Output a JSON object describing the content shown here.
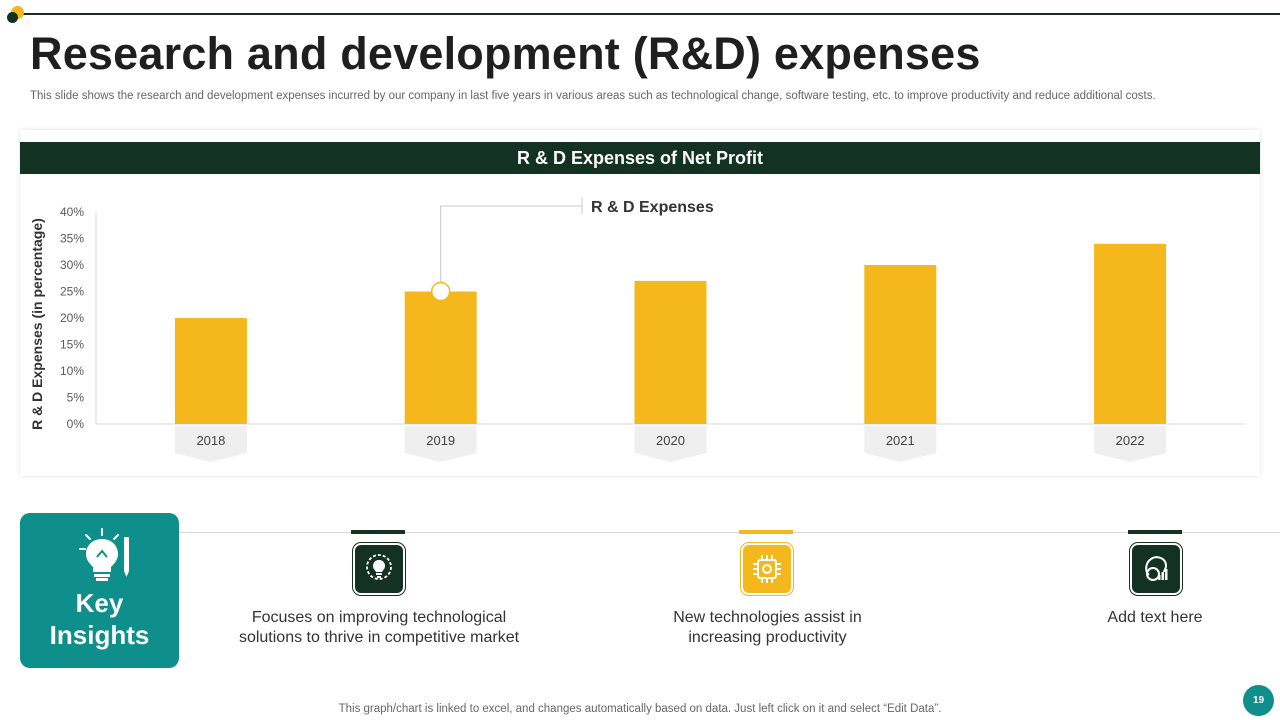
{
  "slide": {
    "title": "Research and development (R&D) expenses",
    "subtitle": "This slide shows the research and development expenses incurred by our company in last five  years  in various areas such as technological change, software testing, etc. to improve productivity and reduce additional costs.",
    "footer": "This graph/chart is linked to excel,  and changes automatically based on data. Just left click on it and select “Edit Data”.",
    "page_number": "19"
  },
  "chart_data": {
    "type": "bar",
    "title": "R & D Expenses of Net Profit",
    "series_name": "R & D Expenses",
    "xlabel": "",
    "ylabel": "R & D Expenses (in percentage)",
    "categories": [
      "2018",
      "2019",
      "2020",
      "2021",
      "2022"
    ],
    "values": [
      20,
      25,
      27,
      30,
      34
    ],
    "ylim": [
      0,
      40
    ],
    "y_ticks": [
      0,
      5,
      10,
      15,
      20,
      25,
      30,
      35,
      40
    ],
    "y_tick_suffix": "%",
    "callout_category_index": 1,
    "bar_color": "#f4b81c",
    "grid": false
  },
  "insights": {
    "heading_line1": "Key",
    "heading_line2": "Insights",
    "items": [
      {
        "text_line1": "Focuses on improving technological",
        "text_line2": "solutions to thrive  in competitive market",
        "icon": "lightbulb-gear-icon",
        "accent": "#133223"
      },
      {
        "text_line1": "New technologies assist in",
        "text_line2": "increasing productivity",
        "icon": "chip-icon",
        "accent": "#f4b81c"
      },
      {
        "text_line1": "Add text here",
        "text_line2": "",
        "icon": "head-chart-icon",
        "accent": "#133223"
      }
    ]
  },
  "colors": {
    "dark_green": "#133223",
    "teal": "#0f8f8c",
    "yellow": "#f4b81c"
  }
}
